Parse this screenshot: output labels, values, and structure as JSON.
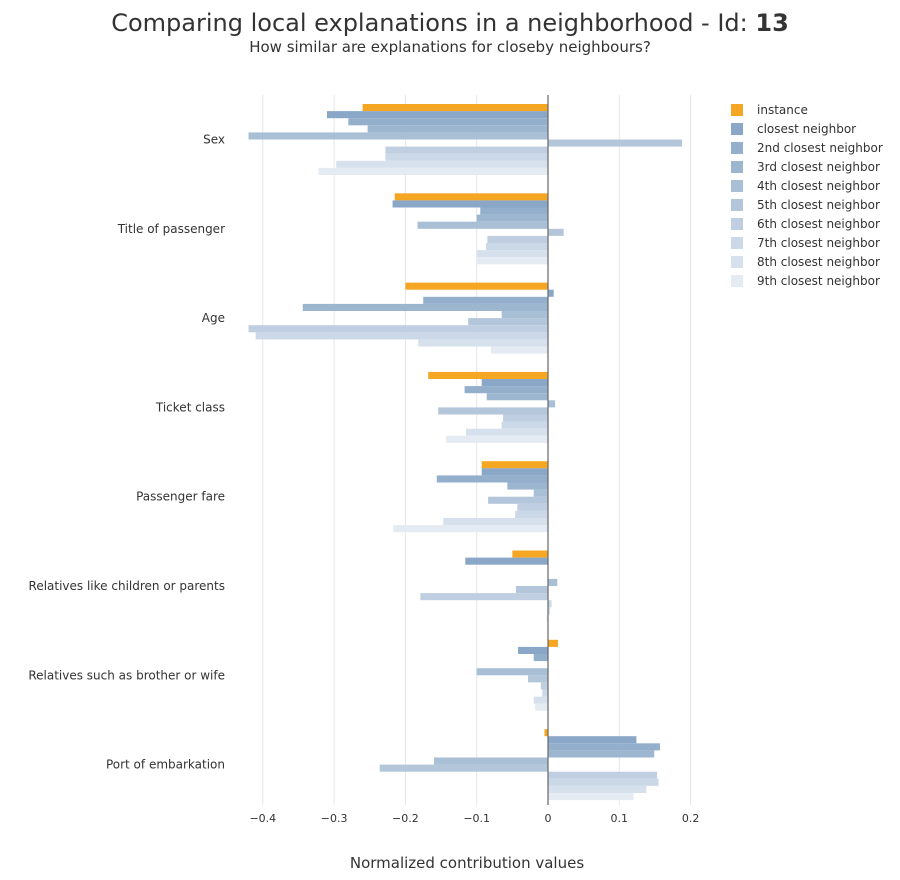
{
  "chart_data": {
    "type": "bar",
    "orientation": "horizontal",
    "title_prefix": "Comparing local explanations in a neighborhood - Id: ",
    "title_id": "13",
    "subtitle": "How similar are explanations for closeby neighbours?",
    "xlabel": "Normalized contribution values",
    "xlim": [
      -0.42,
      0.2
    ],
    "xticks": [
      -0.4,
      -0.3,
      -0.2,
      -0.1,
      0,
      0.1,
      0.2
    ],
    "xtick_labels": [
      "−0.4",
      "−0.3",
      "−0.2",
      "−0.1",
      "0",
      "0.1",
      "0.2"
    ],
    "grid": "vertical",
    "legend_position": "top-right",
    "categories": [
      "Sex",
      "Title of passenger",
      "Age",
      "Ticket class",
      "Passenger fare",
      "Relatives like children or parents",
      "Relatives such as brother or wife",
      "Port of embarkation"
    ],
    "series": [
      {
        "name": "instance",
        "color": "#f5a623",
        "values": [
          -0.26,
          -0.215,
          -0.2,
          -0.168,
          -0.093,
          -0.05,
          0.014,
          -0.005
        ]
      },
      {
        "name": "closest neighbor",
        "color": "#8aa7c8",
        "values": [
          -0.31,
          -0.218,
          0.008,
          -0.093,
          -0.093,
          -0.116,
          -0.042,
          0.124
        ]
      },
      {
        "name": "2nd closest neighbor",
        "color": "#94afcc",
        "values": [
          -0.28,
          -0.095,
          -0.175,
          -0.117,
          -0.156,
          0.0,
          -0.02,
          0.157
        ]
      },
      {
        "name": "3rd closest neighbor",
        "color": "#9db6d0",
        "values": [
          -0.253,
          -0.1,
          -0.344,
          -0.086,
          -0.057,
          0.0,
          0.0,
          0.149
        ]
      },
      {
        "name": "4th closest neighbor",
        "color": "#a9bfd6",
        "values": [
          -0.42,
          -0.183,
          -0.065,
          0.01,
          -0.02,
          0.013,
          -0.1,
          -0.16
        ]
      },
      {
        "name": "5th closest neighbor",
        "color": "#b4c6da",
        "values": [
          0.188,
          0.022,
          -0.112,
          -0.154,
          -0.084,
          -0.045,
          -0.028,
          -0.236
        ]
      },
      {
        "name": "6th closest neighbor",
        "color": "#bfcfe1",
        "values": [
          -0.228,
          -0.085,
          -0.42,
          -0.063,
          -0.043,
          -0.179,
          -0.01,
          0.153
        ]
      },
      {
        "name": "7th closest neighbor",
        "color": "#cbd8e7",
        "values": [
          -0.228,
          -0.087,
          -0.41,
          -0.065,
          -0.046,
          0.005,
          -0.008,
          0.155
        ]
      },
      {
        "name": "8th closest neighbor",
        "color": "#d7e1ed",
        "values": [
          -0.297,
          -0.1,
          -0.182,
          -0.115,
          -0.147,
          0.003,
          -0.02,
          0.138
        ]
      },
      {
        "name": "9th closest neighbor",
        "color": "#e4ebf3",
        "values": [
          -0.322,
          -0.1,
          -0.08,
          -0.143,
          -0.217,
          -0.002,
          -0.018,
          0.12
        ]
      }
    ]
  }
}
